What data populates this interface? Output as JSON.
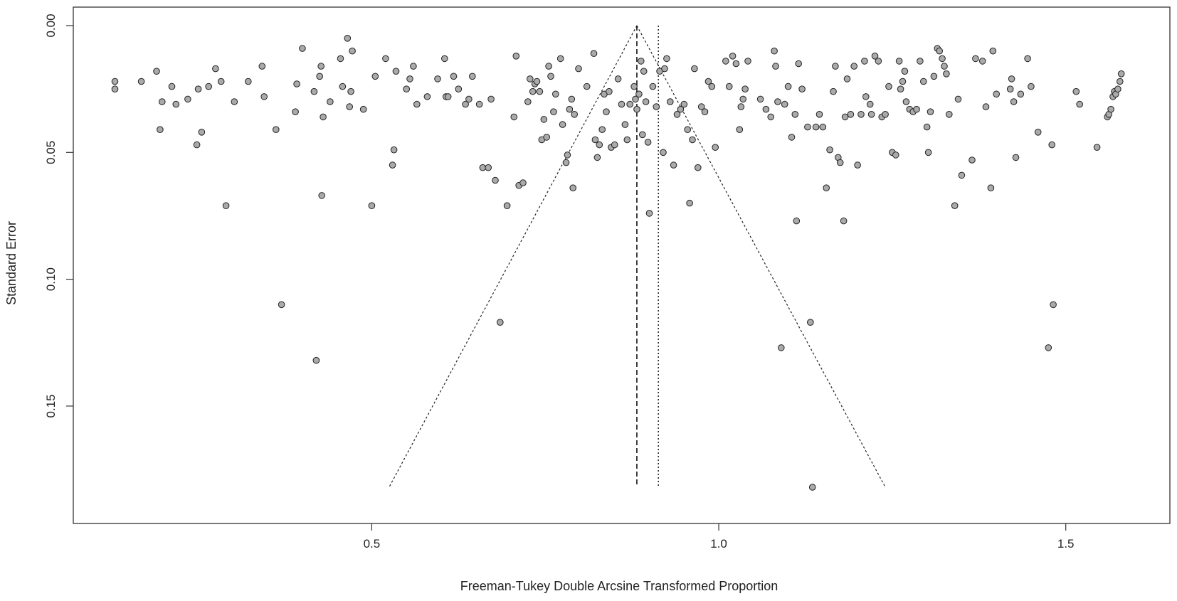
{
  "chart_data": {
    "type": "scatter",
    "title": "",
    "xlabel": "Freeman-Tukey Double Arcsine Transformed Proportion",
    "ylabel": "Standard Error",
    "xlim": [
      0.07,
      1.65
    ],
    "ylim": [
      0.0,
      0.189
    ],
    "y_reversed": true,
    "grid": false,
    "x_ticks": [
      0.5,
      1.0,
      1.5
    ],
    "x_tick_labels": [
      "0.5",
      "1.0",
      "1.5"
    ],
    "y_ticks": [
      0.0,
      0.05,
      0.1,
      0.15
    ],
    "y_tick_labels": [
      "0.00",
      "0.05",
      "0.10",
      "0.15"
    ],
    "pooled_estimate_random": 0.882,
    "pooled_estimate_fixed": 0.913,
    "funnel": {
      "apex": [
        0.882,
        0.0
      ],
      "base_left": [
        0.525,
        0.182
      ],
      "base_right": [
        1.24,
        0.182
      ]
    },
    "point_color": "#aaaaaa",
    "series": [
      {
        "values": [
          [
            0.13,
            0.022
          ],
          [
            0.13,
            0.025
          ],
          [
            0.168,
            0.022
          ],
          [
            0.19,
            0.018
          ],
          [
            0.195,
            0.041
          ],
          [
            0.198,
            0.03
          ],
          [
            0.212,
            0.024
          ],
          [
            0.218,
            0.031
          ],
          [
            0.235,
            0.029
          ],
          [
            0.248,
            0.047
          ],
          [
            0.25,
            0.025
          ],
          [
            0.255,
            0.042
          ],
          [
            0.265,
            0.024
          ],
          [
            0.275,
            0.017
          ],
          [
            0.283,
            0.022
          ],
          [
            0.29,
            0.071
          ],
          [
            0.302,
            0.03
          ],
          [
            0.322,
            0.022
          ],
          [
            0.342,
            0.016
          ],
          [
            0.345,
            0.028
          ],
          [
            0.362,
            0.041
          ],
          [
            0.37,
            0.11
          ],
          [
            0.39,
            0.034
          ],
          [
            0.392,
            0.023
          ],
          [
            0.4,
            0.009
          ],
          [
            0.417,
            0.026
          ],
          [
            0.42,
            0.132
          ],
          [
            0.425,
            0.02
          ],
          [
            0.427,
            0.016
          ],
          [
            0.428,
            0.067
          ],
          [
            0.43,
            0.036
          ],
          [
            0.44,
            0.03
          ],
          [
            0.455,
            0.013
          ],
          [
            0.458,
            0.024
          ],
          [
            0.465,
            0.005
          ],
          [
            0.468,
            0.032
          ],
          [
            0.47,
            0.026
          ],
          [
            0.472,
            0.01
          ],
          [
            0.488,
            0.033
          ],
          [
            0.5,
            0.071
          ],
          [
            0.505,
            0.02
          ],
          [
            0.52,
            0.013
          ],
          [
            0.53,
            0.055
          ],
          [
            0.532,
            0.049
          ],
          [
            0.535,
            0.018
          ],
          [
            0.55,
            0.025
          ],
          [
            0.555,
            0.021
          ],
          [
            0.56,
            0.016
          ],
          [
            0.565,
            0.031
          ],
          [
            0.58,
            0.028
          ],
          [
            0.595,
            0.021
          ],
          [
            0.605,
            0.013
          ],
          [
            0.607,
            0.028
          ],
          [
            0.61,
            0.028
          ],
          [
            0.618,
            0.02
          ],
          [
            0.625,
            0.025
          ],
          [
            0.635,
            0.031
          ],
          [
            0.64,
            0.029
          ],
          [
            0.645,
            0.02
          ],
          [
            0.655,
            0.031
          ],
          [
            0.66,
            0.056
          ],
          [
            0.668,
            0.056
          ],
          [
            0.672,
            0.029
          ],
          [
            0.678,
            0.061
          ],
          [
            0.685,
            0.117
          ],
          [
            0.695,
            0.071
          ],
          [
            0.705,
            0.036
          ],
          [
            0.708,
            0.012
          ],
          [
            0.712,
            0.063
          ],
          [
            0.718,
            0.062
          ],
          [
            0.725,
            0.03
          ],
          [
            0.728,
            0.021
          ],
          [
            0.732,
            0.026
          ],
          [
            0.735,
            0.023
          ],
          [
            0.738,
            0.022
          ],
          [
            0.742,
            0.026
          ],
          [
            0.745,
            0.045
          ],
          [
            0.748,
            0.037
          ],
          [
            0.752,
            0.044
          ],
          [
            0.755,
            0.016
          ],
          [
            0.758,
            0.02
          ],
          [
            0.762,
            0.034
          ],
          [
            0.765,
            0.027
          ],
          [
            0.772,
            0.013
          ],
          [
            0.775,
            0.039
          ],
          [
            0.78,
            0.054
          ],
          [
            0.782,
            0.051
          ],
          [
            0.785,
            0.033
          ],
          [
            0.788,
            0.029
          ],
          [
            0.79,
            0.064
          ],
          [
            0.792,
            0.035
          ],
          [
            0.798,
            0.017
          ],
          [
            0.81,
            0.024
          ],
          [
            0.82,
            0.011
          ],
          [
            0.822,
            0.045
          ],
          [
            0.825,
            0.052
          ],
          [
            0.828,
            0.047
          ],
          [
            0.832,
            0.041
          ],
          [
            0.835,
            0.027
          ],
          [
            0.838,
            0.034
          ],
          [
            0.842,
            0.026
          ],
          [
            0.845,
            0.048
          ],
          [
            0.85,
            0.047
          ],
          [
            0.855,
            0.021
          ],
          [
            0.86,
            0.031
          ],
          [
            0.865,
            0.039
          ],
          [
            0.868,
            0.045
          ],
          [
            0.872,
            0.031
          ],
          [
            0.878,
            0.024
          ],
          [
            0.88,
            0.029
          ],
          [
            0.882,
            0.033
          ],
          [
            0.885,
            0.027
          ],
          [
            0.888,
            0.014
          ],
          [
            0.89,
            0.043
          ],
          [
            0.892,
            0.018
          ],
          [
            0.895,
            0.03
          ],
          [
            0.898,
            0.046
          ],
          [
            0.9,
            0.074
          ],
          [
            0.905,
            0.024
          ],
          [
            0.91,
            0.032
          ],
          [
            0.915,
            0.018
          ],
          [
            0.92,
            0.05
          ],
          [
            0.922,
            0.017
          ],
          [
            0.925,
            0.013
          ],
          [
            0.93,
            0.03
          ],
          [
            0.935,
            0.055
          ],
          [
            0.94,
            0.035
          ],
          [
            0.945,
            0.033
          ],
          [
            0.95,
            0.031
          ],
          [
            0.955,
            0.041
          ],
          [
            0.958,
            0.07
          ],
          [
            0.962,
            0.045
          ],
          [
            0.965,
            0.017
          ],
          [
            0.97,
            0.056
          ],
          [
            0.975,
            0.032
          ],
          [
            0.98,
            0.034
          ],
          [
            0.985,
            0.022
          ],
          [
            0.99,
            0.024
          ],
          [
            0.995,
            0.048
          ],
          [
            1.01,
            0.014
          ],
          [
            1.015,
            0.024
          ],
          [
            1.02,
            0.012
          ],
          [
            1.025,
            0.015
          ],
          [
            1.03,
            0.041
          ],
          [
            1.032,
            0.032
          ],
          [
            1.035,
            0.029
          ],
          [
            1.038,
            0.025
          ],
          [
            1.042,
            0.014
          ],
          [
            1.06,
            0.029
          ],
          [
            1.068,
            0.033
          ],
          [
            1.075,
            0.036
          ],
          [
            1.08,
            0.01
          ],
          [
            1.082,
            0.016
          ],
          [
            1.085,
            0.03
          ],
          [
            1.09,
            0.127
          ],
          [
            1.095,
            0.031
          ],
          [
            1.1,
            0.024
          ],
          [
            1.105,
            0.044
          ],
          [
            1.11,
            0.035
          ],
          [
            1.112,
            0.077
          ],
          [
            1.115,
            0.015
          ],
          [
            1.12,
            0.025
          ],
          [
            1.128,
            0.04
          ],
          [
            1.132,
            0.117
          ],
          [
            1.135,
            0.182
          ],
          [
            1.14,
            0.04
          ],
          [
            1.145,
            0.035
          ],
          [
            1.15,
            0.04
          ],
          [
            1.155,
            0.064
          ],
          [
            1.16,
            0.049
          ],
          [
            1.165,
            0.026
          ],
          [
            1.168,
            0.016
          ],
          [
            1.172,
            0.052
          ],
          [
            1.175,
            0.054
          ],
          [
            1.18,
            0.077
          ],
          [
            1.182,
            0.036
          ],
          [
            1.185,
            0.021
          ],
          [
            1.19,
            0.035
          ],
          [
            1.195,
            0.016
          ],
          [
            1.2,
            0.055
          ],
          [
            1.205,
            0.035
          ],
          [
            1.21,
            0.014
          ],
          [
            1.212,
            0.028
          ],
          [
            1.218,
            0.031
          ],
          [
            1.22,
            0.035
          ],
          [
            1.225,
            0.012
          ],
          [
            1.23,
            0.014
          ],
          [
            1.235,
            0.036
          ],
          [
            1.24,
            0.035
          ],
          [
            1.245,
            0.024
          ],
          [
            1.25,
            0.05
          ],
          [
            1.255,
            0.051
          ],
          [
            1.26,
            0.014
          ],
          [
            1.262,
            0.025
          ],
          [
            1.265,
            0.022
          ],
          [
            1.268,
            0.018
          ],
          [
            1.27,
            0.03
          ],
          [
            1.275,
            0.033
          ],
          [
            1.28,
            0.034
          ],
          [
            1.285,
            0.033
          ],
          [
            1.29,
            0.014
          ],
          [
            1.295,
            0.022
          ],
          [
            1.3,
            0.04
          ],
          [
            1.302,
            0.05
          ],
          [
            1.305,
            0.034
          ],
          [
            1.31,
            0.02
          ],
          [
            1.315,
            0.009
          ],
          [
            1.318,
            0.01
          ],
          [
            1.322,
            0.013
          ],
          [
            1.325,
            0.016
          ],
          [
            1.328,
            0.019
          ],
          [
            1.332,
            0.035
          ],
          [
            1.34,
            0.071
          ],
          [
            1.345,
            0.029
          ],
          [
            1.35,
            0.059
          ],
          [
            1.365,
            0.053
          ],
          [
            1.37,
            0.013
          ],
          [
            1.38,
            0.014
          ],
          [
            1.385,
            0.032
          ],
          [
            1.392,
            0.064
          ],
          [
            1.395,
            0.01
          ],
          [
            1.4,
            0.027
          ],
          [
            1.42,
            0.025
          ],
          [
            1.422,
            0.021
          ],
          [
            1.425,
            0.03
          ],
          [
            1.428,
            0.052
          ],
          [
            1.435,
            0.027
          ],
          [
            1.445,
            0.013
          ],
          [
            1.45,
            0.024
          ],
          [
            1.46,
            0.042
          ],
          [
            1.475,
            0.127
          ],
          [
            1.48,
            0.047
          ],
          [
            1.482,
            0.11
          ],
          [
            1.515,
            0.026
          ],
          [
            1.52,
            0.031
          ],
          [
            1.545,
            0.048
          ],
          [
            1.56,
            0.036
          ],
          [
            1.562,
            0.035
          ],
          [
            1.565,
            0.033
          ],
          [
            1.568,
            0.028
          ],
          [
            1.57,
            0.026
          ],
          [
            1.572,
            0.027
          ],
          [
            1.575,
            0.025
          ],
          [
            1.578,
            0.022
          ],
          [
            1.58,
            0.019
          ]
        ]
      }
    ]
  }
}
